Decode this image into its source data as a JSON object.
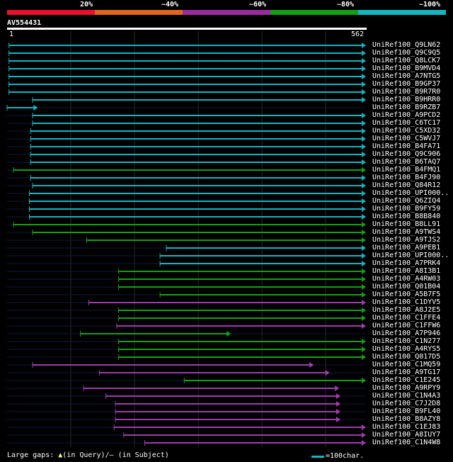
{
  "query_id": "AV554431",
  "query_start": "1",
  "query_end": "562",
  "identity_scale": [
    "20%",
    "~40%",
    "~60%",
    "~80%",
    "~100%"
  ],
  "identity_colors": [
    "#e8102a",
    "#e0661c",
    "#9a2aa0",
    "#14a014",
    "#14b4c0"
  ],
  "footer": {
    "large_gaps_prefix": "Large gaps: ",
    "large_gaps_query": "(in Query)/",
    "large_gaps_subject": " (in Subject)",
    "scale_legend": "=100char."
  },
  "hits": [
    {
      "label": "UniRef100_Q9LN62",
      "color": "cyan",
      "start": 3,
      "end": 562
    },
    {
      "label": "UniRef100_Q9C9Q5",
      "color": "cyan",
      "start": 3,
      "end": 562
    },
    {
      "label": "UniRef100_Q8LCK7",
      "color": "cyan",
      "start": 3,
      "end": 562
    },
    {
      "label": "UniRef100_B9MVD4",
      "color": "cyan",
      "start": 3,
      "end": 562
    },
    {
      "label": "UniRef100_A7NTG5",
      "color": "cyan",
      "start": 3,
      "end": 562
    },
    {
      "label": "UniRef100_B9GP37",
      "color": "cyan",
      "start": 3,
      "end": 562
    },
    {
      "label": "UniRef100_B9R7R0",
      "color": "cyan",
      "start": 3,
      "end": 562
    },
    {
      "label": "UniRef100_B9HRR0",
      "color": "cyan",
      "start": 40,
      "end": 562
    },
    {
      "label": "UniRef100_B9RZB7",
      "color": "cyan",
      "start": 0,
      "end": 47
    },
    {
      "label": "UniRef100_A9PCD2",
      "color": "cyan",
      "start": 40,
      "end": 562
    },
    {
      "label": "UniRef100_C6TC17",
      "color": "cyan",
      "start": 40,
      "end": 562
    },
    {
      "label": "UniRef100_C5XD32",
      "color": "cyan",
      "start": 37,
      "end": 562
    },
    {
      "label": "UniRef100_C5WVJ7",
      "color": "cyan",
      "start": 37,
      "end": 562
    },
    {
      "label": "UniRef100_B4FA71",
      "color": "cyan",
      "start": 37,
      "end": 562
    },
    {
      "label": "UniRef100_Q9C906",
      "color": "cyan",
      "start": 37,
      "end": 562
    },
    {
      "label": "UniRef100_B6TAQ7",
      "color": "cyan",
      "start": 37,
      "end": 562
    },
    {
      "label": "UniRef100_B4FMQ1",
      "color": "green",
      "start": 10,
      "end": 562
    },
    {
      "label": "UniRef100_B4FJ90",
      "color": "cyan",
      "start": 37,
      "end": 562
    },
    {
      "label": "UniRef100_Q84R12",
      "color": "cyan",
      "start": 40,
      "end": 562
    },
    {
      "label": "UniRef100_UPI000..",
      "color": "cyan",
      "start": 35,
      "end": 562
    },
    {
      "label": "UniRef100_Q6ZIQ4",
      "color": "cyan",
      "start": 35,
      "end": 562
    },
    {
      "label": "UniRef100_B9FY59",
      "color": "cyan",
      "start": 35,
      "end": 562
    },
    {
      "label": "UniRef100_B8B840",
      "color": "cyan",
      "start": 35,
      "end": 562
    },
    {
      "label": "UniRef100_B8LL91",
      "color": "green",
      "start": 10,
      "end": 562
    },
    {
      "label": "UniRef100_A9TWS4",
      "color": "green",
      "start": 40,
      "end": 562
    },
    {
      "label": "UniRef100_A9TJS2",
      "color": "green",
      "start": 125,
      "end": 562
    },
    {
      "label": "UniRef100_A9PEB1",
      "color": "cyan",
      "start": 250,
      "end": 562
    },
    {
      "label": "UniRef100_UPI000..",
      "color": "cyan",
      "start": 240,
      "end": 562
    },
    {
      "label": "UniRef100_A7PRK4",
      "color": "cyan",
      "start": 240,
      "end": 562
    },
    {
      "label": "UniRef100_A8I3B1",
      "color": "green",
      "start": 175,
      "end": 562
    },
    {
      "label": "UniRef100_A4RW03",
      "color": "green",
      "start": 175,
      "end": 562
    },
    {
      "label": "UniRef100_Q01B04",
      "color": "green",
      "start": 175,
      "end": 562
    },
    {
      "label": "UniRef100_A5B7F5",
      "color": "green",
      "start": 240,
      "end": 562
    },
    {
      "label": "UniRef100_C1DYV5",
      "color": "purple",
      "start": 128,
      "end": 562
    },
    {
      "label": "UniRef100_A8J2E5",
      "color": "green",
      "start": 175,
      "end": 562
    },
    {
      "label": "UniRef100_C1FFE4",
      "color": "green",
      "start": 175,
      "end": 562
    },
    {
      "label": "UniRef100_C1FFW6",
      "color": "purple",
      "start": 172,
      "end": 562
    },
    {
      "label": "UniRef100_A7P946",
      "color": "green",
      "start": 115,
      "end": 350
    },
    {
      "label": "UniRef100_C1N277",
      "color": "green",
      "start": 175,
      "end": 562
    },
    {
      "label": "UniRef100_A4RYS5",
      "color": "green",
      "start": 175,
      "end": 562
    },
    {
      "label": "UniRef100_Q017D5",
      "color": "green",
      "start": 175,
      "end": 562
    },
    {
      "label": "UniRef100_C1MQ59",
      "color": "purple",
      "start": 40,
      "end": 480
    },
    {
      "label": "UniRef100_A9TG17",
      "color": "purple",
      "start": 145,
      "end": 505
    },
    {
      "label": "UniRef100_C1E245",
      "color": "green",
      "start": 278,
      "end": 562
    },
    {
      "label": "UniRef100_A9RPY9",
      "color": "purple",
      "start": 120,
      "end": 520
    },
    {
      "label": "UniRef100_C1N4A3",
      "color": "purple",
      "start": 155,
      "end": 522
    },
    {
      "label": "UniRef100_C7J2D8",
      "color": "purple",
      "start": 170,
      "end": 522
    },
    {
      "label": "UniRef100_B9FL40",
      "color": "purple",
      "start": 170,
      "end": 522
    },
    {
      "label": "UniRef100_B8AZY8",
      "color": "purple",
      "start": 170,
      "end": 522
    },
    {
      "label": "UniRef100_C1EJ83",
      "color": "purple",
      "start": 168,
      "end": 562
    },
    {
      "label": "UniRef100_A8IUY7",
      "color": "purple",
      "start": 183,
      "end": 562
    },
    {
      "label": "UniRef100_C1N4W8",
      "color": "purple",
      "start": 216,
      "end": 562
    }
  ]
}
